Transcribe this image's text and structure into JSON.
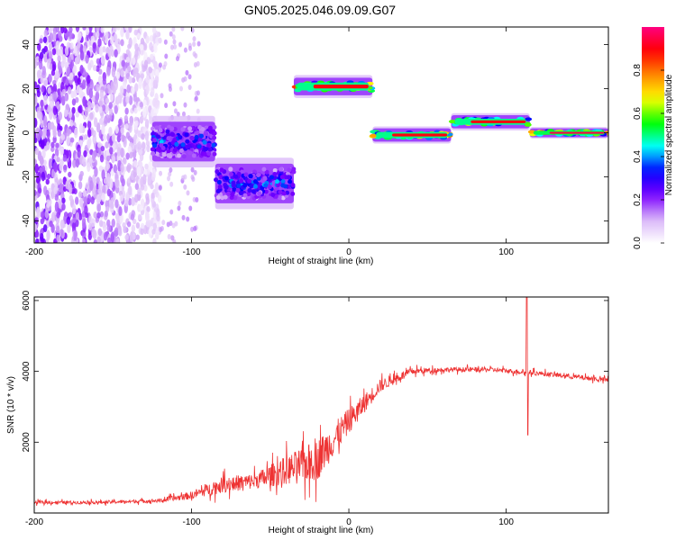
{
  "title": "GN05.2025.046.09.09.G07",
  "chart_data": [
    {
      "type": "heatmap",
      "xlabel": "Height of straight line (km)",
      "ylabel": "Frequency (Hz)",
      "xlim": [
        -200,
        165
      ],
      "ylim": [
        -50,
        48
      ],
      "xticks": [
        -200,
        -100,
        0,
        100
      ],
      "yticks": [
        -40,
        -20,
        0,
        20,
        40
      ],
      "colorbar": {
        "label": "Normalized spectral amplitude",
        "range": [
          0,
          1
        ],
        "ticks": [
          0.0,
          0.2,
          0.4,
          0.6,
          0.8
        ],
        "colormap": [
          "#ffffff",
          "#d8b4f8",
          "#7b00ff",
          "#0000ff",
          "#00ffff",
          "#00ff00",
          "#ffff00",
          "#ff8800",
          "#ff0000",
          "#ff0080"
        ]
      },
      "segments": [
        {
          "x_start": -200,
          "x_end": -120,
          "freq_center": 0,
          "freq_half_width": 48,
          "peak_amplitude": 0.25,
          "character": "noise"
        },
        {
          "x_start": -125,
          "x_end": -85,
          "freq_center": -4,
          "freq_half_width": 9,
          "peak_amplitude": 0.45
        },
        {
          "x_start": -85,
          "x_end": -35,
          "freq_center": -23,
          "freq_half_width": 9,
          "peak_amplitude": 0.45
        },
        {
          "x_start": -35,
          "x_end": 15,
          "freq_center": 21,
          "freq_half_width": 4,
          "peak_amplitude": 0.9
        },
        {
          "x_start": 15,
          "x_end": 65,
          "freq_center": -1,
          "freq_half_width": 3,
          "peak_amplitude": 0.9
        },
        {
          "x_start": 65,
          "x_end": 115,
          "freq_center": 5,
          "freq_half_width": 3,
          "peak_amplitude": 0.9
        },
        {
          "x_start": 115,
          "x_end": 165,
          "freq_center": 0,
          "freq_half_width": 2,
          "peak_amplitude": 0.95
        }
      ]
    },
    {
      "type": "line",
      "xlabel": "Height of straight line (km)",
      "ylabel": "SNR (10 * v/v)",
      "xlim": [
        -200,
        165
      ],
      "ylim": [
        0,
        6100
      ],
      "xticks": [
        -200,
        -100,
        0,
        100
      ],
      "yticks": [
        2000,
        4000,
        6000
      ],
      "color": "#ee3333",
      "envelope": [
        {
          "x": -200,
          "mean": 300,
          "spread": 100
        },
        {
          "x": -160,
          "mean": 300,
          "spread": 100
        },
        {
          "x": -120,
          "mean": 350,
          "spread": 120
        },
        {
          "x": -100,
          "mean": 500,
          "spread": 250
        },
        {
          "x": -80,
          "mean": 800,
          "spread": 500
        },
        {
          "x": -60,
          "mean": 900,
          "spread": 500
        },
        {
          "x": -40,
          "mean": 1200,
          "spread": 900
        },
        {
          "x": -20,
          "mean": 1500,
          "spread": 1300
        },
        {
          "x": 0,
          "mean": 2600,
          "spread": 800
        },
        {
          "x": 20,
          "mean": 3600,
          "spread": 400
        },
        {
          "x": 40,
          "mean": 4000,
          "spread": 200
        },
        {
          "x": 60,
          "mean": 4050,
          "spread": 150
        },
        {
          "x": 90,
          "mean": 4050,
          "spread": 150
        },
        {
          "x": 120,
          "mean": 3950,
          "spread": 150
        },
        {
          "x": 165,
          "mean": 3750,
          "spread": 150
        }
      ],
      "spikes": [
        {
          "x": 113,
          "high": 6100,
          "low": 2200
        }
      ]
    }
  ]
}
